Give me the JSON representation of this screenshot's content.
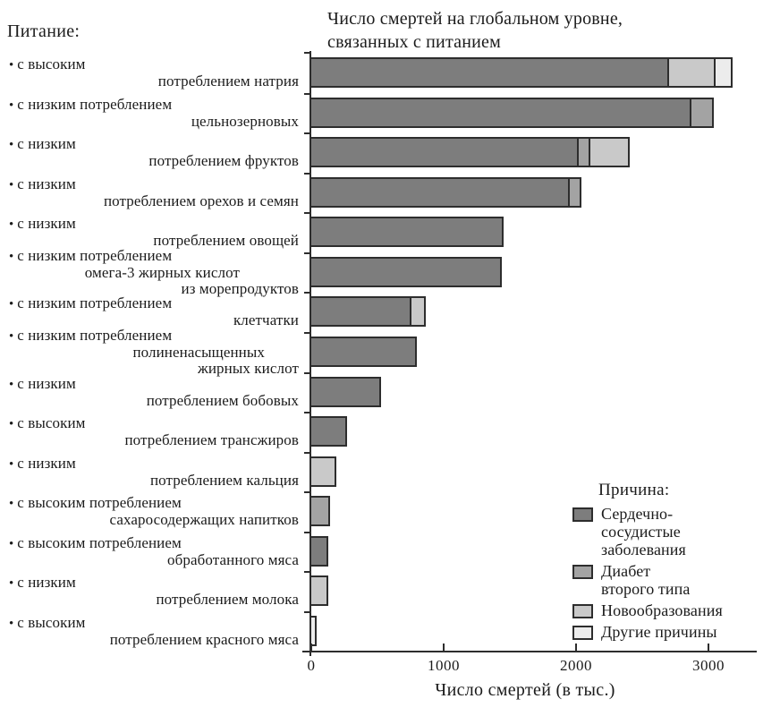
{
  "title": {
    "line1": "Число смертей на глобальном уровне,",
    "line2": "связанных с питанием"
  },
  "y_axis_header": "Питание:",
  "x_axis": {
    "label": "Число смертей (в тыс.)",
    "ticks": [
      0,
      1000,
      2000,
      3000
    ]
  },
  "legend": {
    "title": "Причина:",
    "items": [
      {
        "label": "Сердечно-\nсосудистые\nзаболевания",
        "color": "#7d7d7d"
      },
      {
        "label": "Диабет\nвторого типа",
        "color": "#a3a3a3"
      },
      {
        "label": "Новообразования",
        "color": "#c9c9c9"
      },
      {
        "label": "Другие причины",
        "color": "#ececec"
      }
    ]
  },
  "chart_data": {
    "type": "bar",
    "orientation": "horizontal",
    "stacked": true,
    "title": "Число смертей на глобальном уровне, связанных с питанием",
    "xlabel": "Число смертей (в тыс.)",
    "xlim": [
      0,
      3300
    ],
    "x_ticks": [
      0,
      1000,
      2000,
      3000
    ],
    "unit": "тысячи смертей",
    "legend_position": "lower right",
    "categories": [
      [
        "с высоким",
        "потреблением натрия"
      ],
      [
        "с низким потреблением",
        "цельнозерновых"
      ],
      [
        "с низким",
        "потреблением фруктов"
      ],
      [
        "с низким",
        "потреблением орехов и семян"
      ],
      [
        "с низким",
        "потреблением овощей"
      ],
      [
        "с низким потреблением",
        "омега-3 жирных кислот",
        "из морепродуктов"
      ],
      [
        "с низким потреблением",
        "клетчатки"
      ],
      [
        "с низким потреблением",
        "полиненасыщенных",
        "жирных кислот"
      ],
      [
        "с низким",
        "потреблением бобовых"
      ],
      [
        "с высоким",
        "потреблением трансжиров"
      ],
      [
        "с низким",
        "потреблением кальция"
      ],
      [
        "с высоким потреблением",
        "сахаросодержащих напитков"
      ],
      [
        "с высоким потреблением",
        "обработанного мяса"
      ],
      [
        "с низким",
        "потреблением молока"
      ],
      [
        "с высоким",
        "потреблением красного мяса"
      ]
    ],
    "series": [
      {
        "name": "Сердечно-сосудистые заболевания",
        "color": "#7d7d7d",
        "values": [
          2700,
          2870,
          2020,
          1950,
          1450,
          1440,
          760,
          800,
          530,
          270,
          0,
          0,
          130,
          0,
          0
        ]
      },
      {
        "name": "Диабет второго типа",
        "color": "#a3a3a3",
        "values": [
          0,
          170,
          90,
          90,
          0,
          0,
          0,
          0,
          0,
          0,
          0,
          140,
          0,
          0,
          0
        ]
      },
      {
        "name": "Новообразования",
        "color": "#c9c9c9",
        "values": [
          350,
          0,
          300,
          0,
          0,
          0,
          110,
          0,
          0,
          0,
          190,
          0,
          0,
          130,
          0
        ]
      },
      {
        "name": "Другие причины",
        "color": "#ececec",
        "values": [
          130,
          0,
          0,
          0,
          0,
          0,
          0,
          0,
          0,
          0,
          0,
          0,
          0,
          0,
          40
        ]
      }
    ]
  }
}
